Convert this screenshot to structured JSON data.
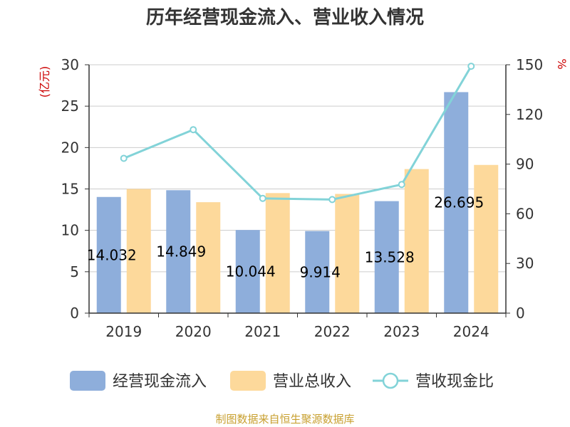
{
  "chart_data": {
    "type": "bar",
    "title": "历年经营现金流入、营业收入情况",
    "categories": [
      "2019",
      "2020",
      "2021",
      "2022",
      "2023",
      "2024"
    ],
    "series": [
      {
        "name": "经营现金流入",
        "type": "bar",
        "axis": "left",
        "color": "#8eaedb",
        "values": [
          14.032,
          14.849,
          10.044,
          9.914,
          13.528,
          26.695
        ],
        "labels": [
          "14.032",
          "14.849",
          "10.044",
          "9.914",
          "13.528",
          "26.695"
        ]
      },
      {
        "name": "营业总收入",
        "type": "bar",
        "axis": "left",
        "color": "#fdd99b",
        "values": [
          15.0,
          13.4,
          14.5,
          14.4,
          17.4,
          17.9
        ]
      },
      {
        "name": "营收现金比",
        "type": "line",
        "axis": "right",
        "color": "#82d3d8",
        "values": [
          93.5,
          110.8,
          69.3,
          68.6,
          77.7,
          149.1
        ]
      }
    ],
    "y_left": {
      "unit": "(亿元)",
      "min": 0,
      "max": 30,
      "ticks": [
        "0",
        "5",
        "10",
        "15",
        "20",
        "25",
        "30"
      ]
    },
    "y_right": {
      "unit": "%",
      "min": 0,
      "max": 150,
      "ticks": [
        "0",
        "30",
        "60",
        "90",
        "120",
        "150"
      ]
    },
    "grid": true,
    "legend": "bottom"
  },
  "source": "制图数据来自恒生聚源数据库"
}
